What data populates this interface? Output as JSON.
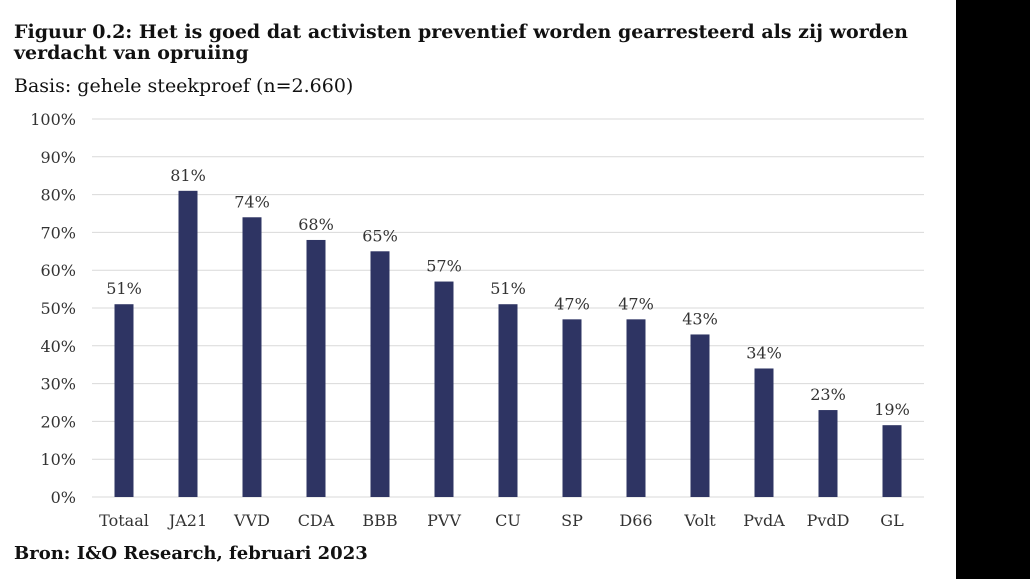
{
  "chart_data": {
    "type": "bar",
    "title": "Figuur 0.2: Het is goed dat activisten preventief worden gearresteerd als zij worden verdacht van opruiing",
    "subtitle": "Basis: gehele steekproef (n=2.660)",
    "source": "Bron: I&O Research, februari 2023",
    "categories": [
      "Totaal",
      "JA21",
      "VVD",
      "CDA",
      "BBB",
      "PVV",
      "CU",
      "SP",
      "D66",
      "Volt",
      "PvdA",
      "PvdD",
      "GL"
    ],
    "values": [
      51,
      81,
      74,
      68,
      65,
      57,
      51,
      47,
      47,
      43,
      34,
      23,
      19
    ],
    "data_labels": [
      "51%",
      "81%",
      "74%",
      "68%",
      "65%",
      "57%",
      "51%",
      "47%",
      "47%",
      "43%",
      "34%",
      "23%",
      "19%"
    ],
    "y_ticks": [
      "0%",
      "10%",
      "20%",
      "30%",
      "40%",
      "50%",
      "60%",
      "70%",
      "80%",
      "90%",
      "100%"
    ],
    "ylim": [
      0,
      100
    ],
    "xlabel": "",
    "ylabel": "",
    "grid": true,
    "colors": {
      "bar": "#2e3463",
      "grid": "#d9d9d9",
      "text": "#333333"
    }
  }
}
